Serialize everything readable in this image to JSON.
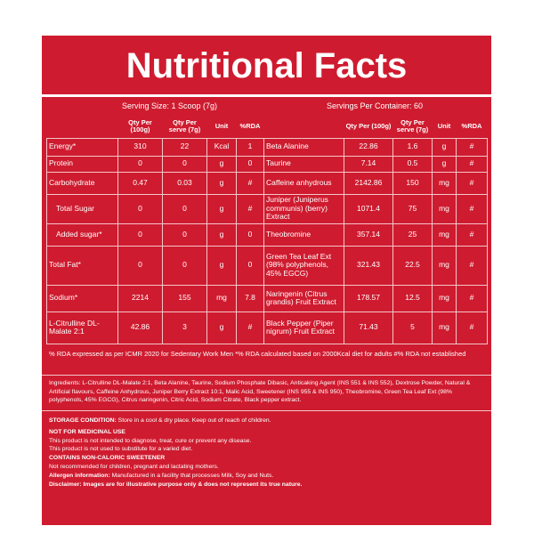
{
  "header": {
    "title": "Nutritional Facts"
  },
  "serving": {
    "size": "Serving Size: 1 Scoop (7g)",
    "per_container": "Servings Per Container: 60"
  },
  "table": {
    "columns_left": [
      "Qty Per (100g)",
      "Qty Per serve (7g)",
      "Unit",
      "%RDA"
    ],
    "columns_right": [
      "Qty Per (100g)",
      "Qty Per serve (7g)",
      "Unit",
      "%RDA"
    ],
    "rows": [
      {
        "left": [
          "Energy*",
          310,
          22,
          "Kcal",
          1
        ],
        "right": [
          "Beta Alanine",
          22.86,
          1.6,
          "g",
          "#"
        ]
      },
      {
        "left": [
          "Protein",
          0,
          0,
          "g",
          0
        ],
        "right": [
          "Taurine",
          7.14,
          0.5,
          "g",
          "#"
        ]
      },
      {
        "left": [
          "Carbohydrate",
          0.47,
          0.03,
          "g",
          "#"
        ],
        "right": [
          "Caffeine anhydrous",
          2142.86,
          150,
          "mg",
          "#"
        ]
      },
      {
        "left": [
          "Total Sugar",
          0,
          0,
          "g",
          "#"
        ],
        "right": [
          "Juniper (Juniperus communis) (berry) Extract",
          1071.4,
          75,
          "mg",
          "#"
        ]
      },
      {
        "left": [
          "Added sugar*",
          0,
          0,
          "g",
          0
        ],
        "right": [
          "Theobromine",
          357.14,
          25,
          "mg",
          "#"
        ]
      },
      {
        "left": [
          "Total Fat*",
          0,
          0,
          "g",
          0
        ],
        "right": [
          "Green Tea Leaf Ext (98% polyphenols, 45% EGCG)",
          321.43,
          22.5,
          "mg",
          "#"
        ]
      },
      {
        "left": [
          "Sodium*",
          2214,
          155,
          "mg",
          7.8
        ],
        "right": [
          "Naringenin (Citrus grandis) Fruit Extract",
          178.57,
          12.5,
          "mg",
          "#"
        ]
      },
      {
        "left": [
          "L-Citrulline DL-Malate 2:1",
          42.86,
          3,
          "g",
          "#"
        ],
        "right": [
          "Black Pepper (Piper nigrum) Fruit Extract",
          71.43,
          5,
          "mg",
          "#"
        ]
      }
    ]
  },
  "footnote": "% RDA expressed as per ICMR 2020 for Sedentary Work Men  *% RDA calculated based on 2000Kcal diet for adults  #% RDA not established",
  "ingredients": "Ingredients: L-Citrulline DL-Malate 2:1, Beta Alanine, Taurine, Sodium Phosphate Dibasic, Anticaking Agent (INS 551 & INS 552), Dextrose Powder, Natural & Artificial flavours, Caffeine Anhydrous, Juniper Berry Extract 10:1, Malic Acid, Sweetener (INS 955 & INS 950), Theobromine, Green Tea Leaf Ext (98% polyphenols, 45% EGCG), Citrus naringenin, Citric Acid, Sodium Citrate, Black pepper extract.",
  "notices": [
    {
      "label": "STORAGE CONDITION:",
      "text": "Store in a cool & dry place. Keep out of reach of children."
    },
    {
      "label": "NOT FOR MEDICINAL USE"
    },
    {
      "text": "This product is not intended to diagnose, treat, cure or prevent any disease."
    },
    {
      "text": "This product is not used to substitute for a varied diet."
    },
    {
      "label": "CONTAINS NON-CALORIC SWEETENER"
    },
    {
      "text": "Not recommended for children, pregnant and lactating mothers."
    },
    {
      "label": "Allergen information:",
      "text": "Manufactured in a facility that processes Milk, Soy and Nuts."
    },
    {
      "label": "Disclaimer:",
      "text": "Images are for illustrative purpose only & does not represent its true nature."
    }
  ]
}
